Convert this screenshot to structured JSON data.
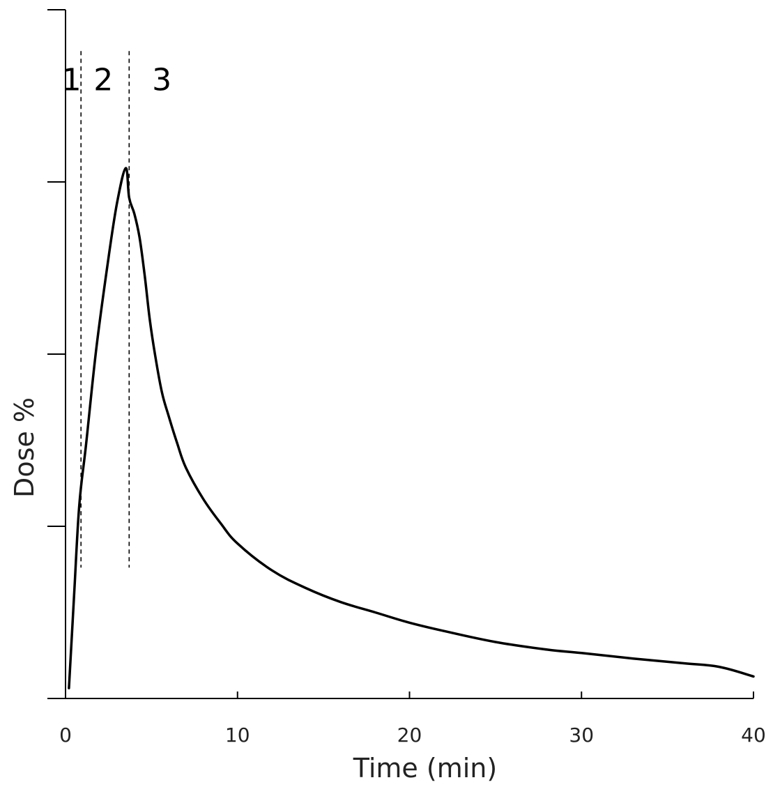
{
  "chart_data": {
    "type": "line",
    "title": "",
    "xlabel": "Time (min)",
    "ylabel": "Dose %",
    "xlim": [
      0,
      40
    ],
    "ylim": [
      0,
      100
    ],
    "x_ticks": [
      0,
      10,
      20,
      30,
      40
    ],
    "x_tick_labels": [
      "0",
      "10",
      "20",
      "30",
      "40"
    ],
    "y_ticks": [
      0,
      25,
      50,
      75,
      100
    ],
    "grid": false,
    "legend": "none",
    "phase_dividers": [
      0.9,
      3.7
    ],
    "phase_labels": [
      {
        "text": "1",
        "x": 0.35,
        "y": 88.3
      },
      {
        "text": "2",
        "x": 2.2,
        "y": 88.3
      },
      {
        "text": "3",
        "x": 5.6,
        "y": 88.3
      }
    ],
    "series": [
      {
        "color": "#000000",
        "x": [
          0.2,
          0.5,
          0.8,
          1.2,
          1.8,
          2.5,
          3.0,
          3.5,
          3.7,
          4.0,
          4.3,
          4.6,
          4.9,
          5.2,
          5.6,
          6.0,
          6.5,
          7.0,
          8.0,
          9.0,
          10.0,
          12.0,
          14.0,
          16.0,
          18.0,
          20.0,
          22.0,
          25.0,
          28.0,
          30.0,
          33.0,
          36.0,
          38.0,
          40.0
        ],
        "y": [
          1.5,
          15.0,
          28.0,
          37.0,
          51.0,
          64.0,
          72.0,
          77.0,
          72.7,
          70.4,
          67.0,
          61.5,
          55.0,
          50.0,
          44.5,
          41.0,
          37.0,
          33.5,
          29.0,
          25.5,
          22.5,
          18.6,
          16.0,
          14.0,
          12.5,
          11.0,
          9.8,
          8.2,
          7.1,
          6.6,
          5.8,
          5.1,
          4.6,
          3.2
        ]
      }
    ]
  }
}
